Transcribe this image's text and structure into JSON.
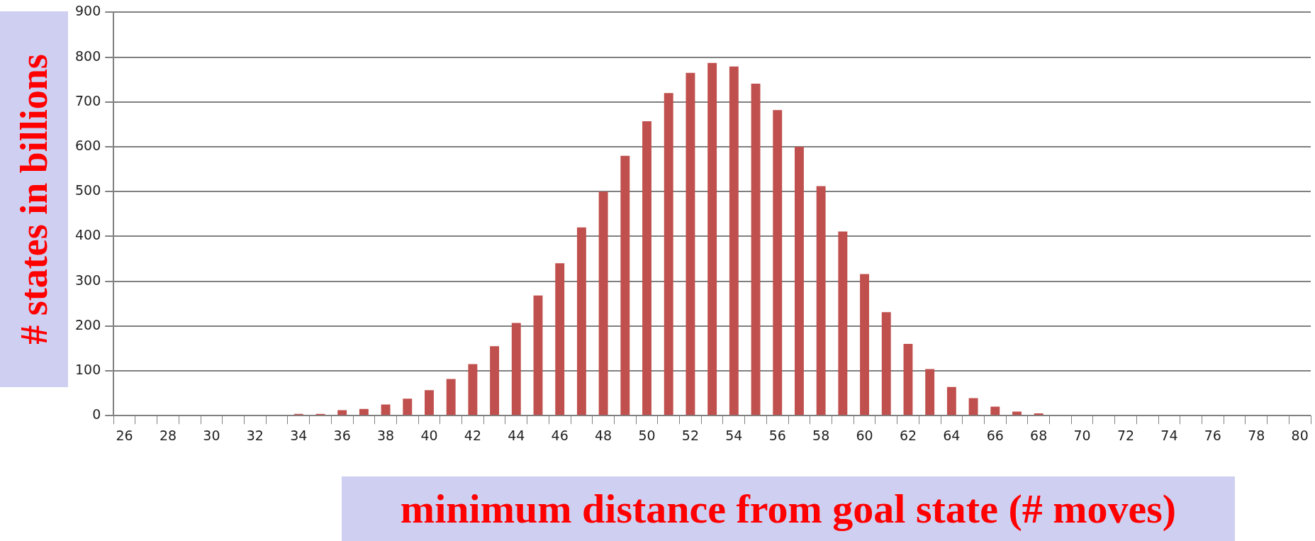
{
  "chart_data": {
    "type": "bar",
    "xlabel": "minimum distance from goal state (# moves)",
    "ylabel": "# states in billions",
    "categories": [
      "26",
      null,
      "28",
      null,
      "30",
      null,
      "32",
      null,
      "34",
      null,
      "36",
      null,
      "38",
      null,
      "40",
      null,
      "42",
      null,
      "44",
      null,
      "46",
      null,
      "48",
      null,
      "50",
      null,
      "52",
      null,
      "54",
      null,
      "56",
      null,
      "58",
      null,
      "60",
      null,
      "62",
      null,
      "64",
      null,
      "66",
      null,
      "68",
      null,
      "70",
      null,
      "72",
      null,
      "74",
      null,
      "76",
      null,
      "78",
      null,
      "80"
    ],
    "values": [
      0,
      0,
      0,
      0,
      0,
      0,
      0,
      0,
      4,
      4,
      12,
      15,
      25,
      38,
      57,
      82,
      115,
      155,
      207,
      268,
      340,
      420,
      500,
      580,
      657,
      720,
      765,
      787,
      779,
      741,
      682,
      600,
      512,
      411,
      316,
      231,
      160,
      104,
      64,
      39,
      20,
      9,
      5,
      0,
      0,
      0,
      0,
      0,
      0,
      0,
      0,
      0,
      0,
      0,
      0
    ],
    "color": "#c0504d",
    "ylim": [
      0,
      900
    ],
    "yticks": [
      0,
      100,
      200,
      300,
      400,
      500,
      600,
      700,
      800,
      900
    ],
    "grid": "y"
  }
}
